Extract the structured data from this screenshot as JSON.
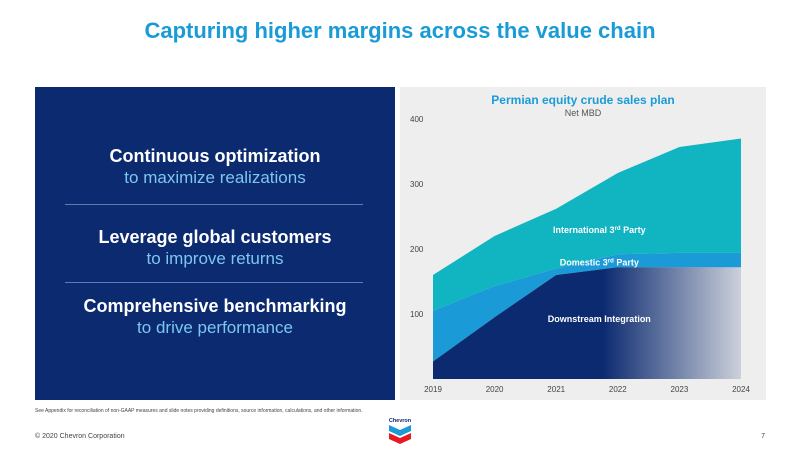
{
  "slide": {
    "title": "Capturing higher margins across the value chain",
    "points": [
      {
        "head": "Continuous optimization",
        "sub": "to maximize realizations"
      },
      {
        "head": "Leverage global customers",
        "sub": "to improve returns"
      },
      {
        "head": "Comprehensive benchmarking",
        "sub": "to drive performance"
      }
    ],
    "footnote": "See Appendix for reconciliation of non-GAAP measures and slide notes providing definitions, source information, calculations, and other information.",
    "copyright": "© 2020 Chevron Corporation",
    "page_number": "7",
    "logo_text": "Chevron"
  },
  "colors": {
    "navy": "#0b2a6f",
    "mid_blue": "#1a9bd7",
    "teal": "#11b4c1",
    "light_blue_text": "#7cc7f2"
  },
  "chart_data": {
    "type": "area",
    "title": "Permian equity crude sales plan",
    "subtitle": "Net MBD",
    "x": [
      "2019",
      "2020",
      "2021",
      "2022",
      "2023",
      "2024"
    ],
    "y_ticks": [
      100,
      200,
      300,
      400
    ],
    "ylim": [
      0,
      400
    ],
    "stacked": true,
    "series": [
      {
        "name": "Downstream Integration",
        "color": "#0b2a6f",
        "values": [
          27,
          95,
          160,
          172,
          172,
          172
        ]
      },
      {
        "name": "Domestic 3rd Party",
        "color": "#1a9bd7",
        "values": [
          78,
          48,
          10,
          20,
          22,
          22
        ]
      },
      {
        "name": "International 3rd Party",
        "color": "#11b4c1",
        "values": [
          55,
          77,
          92,
          125,
          163,
          176
        ]
      }
    ],
    "labels": [
      {
        "text": "International 3",
        "sup": "rd",
        "tail": " Party"
      },
      {
        "text": "Domestic 3",
        "sup": "rd",
        "tail": " Party"
      },
      {
        "text": "Downstream Integration",
        "sup": "",
        "tail": ""
      }
    ]
  }
}
